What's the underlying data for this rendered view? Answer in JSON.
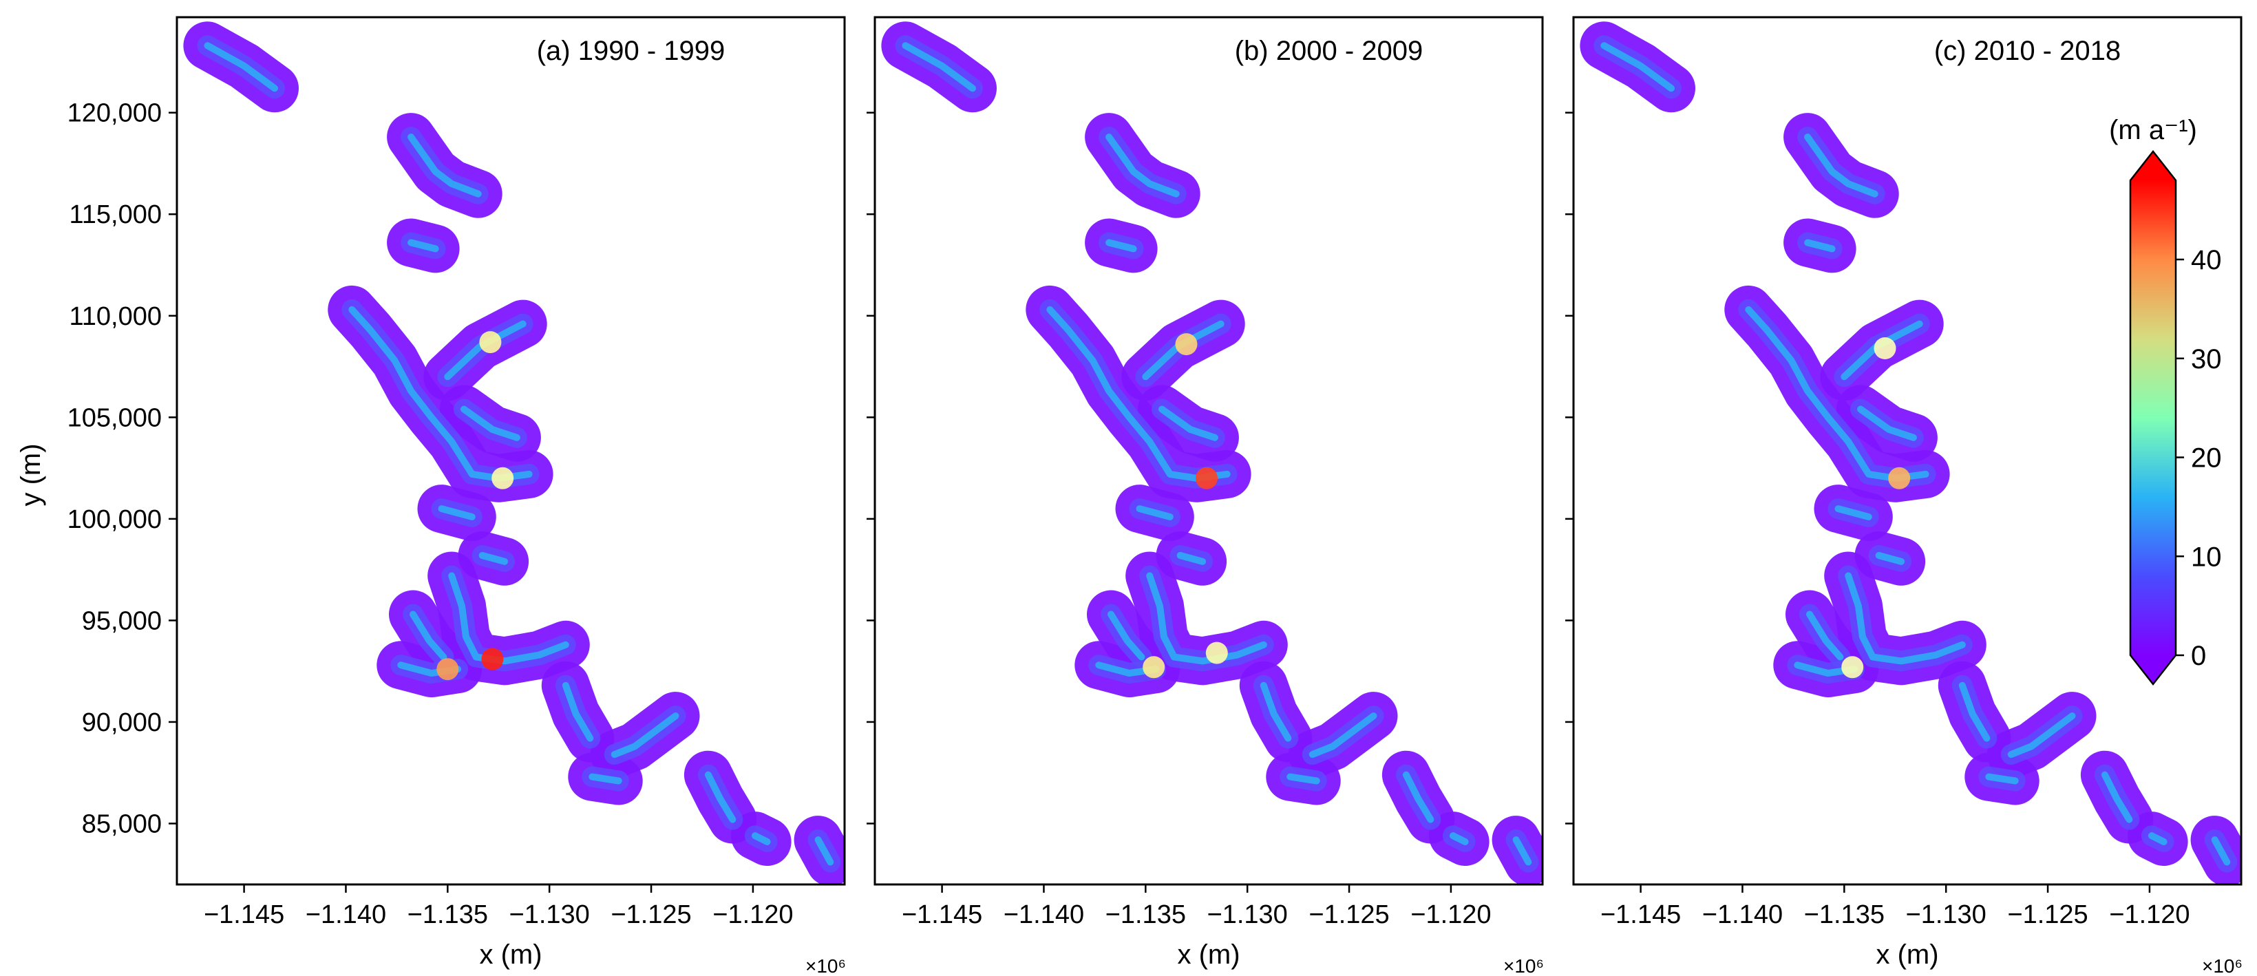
{
  "chart_data": {
    "type": "heatmap",
    "x_tick_labels": [
      "−1.145",
      "−1.140",
      "−1.135",
      "−1.130",
      "−1.125",
      "−1.120"
    ],
    "x_tick_values": [
      -1145000,
      -1140000,
      -1135000,
      -1130000,
      -1125000,
      -1120000
    ],
    "x_exponent_label": "×10⁶",
    "xlabel": "x (m)",
    "xlim": [
      -1148300,
      -1115500
    ],
    "y_tick_labels": [
      "120,000",
      "115,000",
      "110,000",
      "105,000",
      "100,000",
      "95,000",
      "90,000",
      "85,000"
    ],
    "y_tick_values": [
      120000,
      115000,
      110000,
      105000,
      100000,
      95000,
      90000,
      85000
    ],
    "ylabel": "y (m)",
    "ylim": [
      82000,
      124700
    ],
    "panels": [
      {
        "title": "(a) 1990 - 1999"
      },
      {
        "title": "(b) 2000 - 2009"
      },
      {
        "title": "(c) 2010 - 2018"
      }
    ],
    "colorbar": {
      "label": "(m a⁻¹)",
      "tick_labels": [
        "0",
        "10",
        "20",
        "30",
        "40"
      ],
      "tick_values": [
        0,
        10,
        20,
        30,
        40
      ],
      "range": [
        0,
        48
      ],
      "extend": "both",
      "colormap": "rainbow",
      "colors": [
        "#8000ff",
        "#2adddd",
        "#d4dd80",
        "#ff0000"
      ],
      "placement": "right of panel (c)"
    },
    "glacier_flowlines_m": [
      [
        [
          -1146800,
          123300
        ],
        [
          -1145000,
          122300
        ],
        [
          -1143500,
          121200
        ]
      ],
      [
        [
          -1136800,
          118800
        ],
        [
          -1135600,
          117100
        ],
        [
          -1134800,
          116500
        ],
        [
          -1133500,
          116000
        ]
      ],
      [
        [
          -1136800,
          113600
        ],
        [
          -1135600,
          113300
        ]
      ],
      [
        [
          -1139700,
          110300
        ],
        [
          -1138800,
          109300
        ],
        [
          -1137600,
          107800
        ],
        [
          -1136800,
          106300
        ],
        [
          -1135800,
          105000
        ],
        [
          -1134800,
          103800
        ],
        [
          -1133800,
          102200
        ],
        [
          -1132500,
          102000
        ],
        [
          -1131000,
          102200
        ]
      ],
      [
        [
          -1135000,
          107000
        ],
        [
          -1133400,
          108500
        ],
        [
          -1131300,
          109600
        ]
      ],
      [
        [
          -1134200,
          105400
        ],
        [
          -1132800,
          104400
        ],
        [
          -1131600,
          104000
        ]
      ],
      [
        [
          -1135300,
          100500
        ],
        [
          -1133800,
          100100
        ]
      ],
      [
        [
          -1134800,
          97200
        ],
        [
          -1134300,
          95700
        ],
        [
          -1134100,
          94200
        ],
        [
          -1133600,
          93200
        ],
        [
          -1132200,
          93000
        ],
        [
          -1130500,
          93300
        ],
        [
          -1129200,
          93800
        ]
      ],
      [
        [
          -1136700,
          95300
        ],
        [
          -1135900,
          94000
        ],
        [
          -1135200,
          93200
        ]
      ],
      [
        [
          -1137300,
          92800
        ],
        [
          -1135800,
          92400
        ],
        [
          -1134500,
          92600
        ]
      ],
      [
        [
          -1133300,
          98200
        ],
        [
          -1132200,
          97900
        ]
      ],
      [
        [
          -1129200,
          91800
        ],
        [
          -1128700,
          90400
        ],
        [
          -1128000,
          89200
        ]
      ],
      [
        [
          -1126800,
          88400
        ],
        [
          -1125800,
          88800
        ],
        [
          -1124600,
          89700
        ],
        [
          -1123800,
          90300
        ]
      ],
      [
        [
          -1127900,
          87300
        ],
        [
          -1126600,
          87100
        ]
      ],
      [
        [
          -1122200,
          87400
        ],
        [
          -1121600,
          86200
        ],
        [
          -1121000,
          85200
        ]
      ],
      [
        [
          -1119900,
          84400
        ],
        [
          -1119300,
          84100
        ]
      ],
      [
        [
          -1116800,
          84200
        ],
        [
          -1116200,
          83100
        ]
      ]
    ],
    "high_velocity_spots_m_a": [
      {
        "panel": "(a) 1990 - 1999",
        "x": -1132800,
        "y": 93100,
        "value": 46
      },
      {
        "panel": "(a) 1990 - 1999",
        "x": -1135000,
        "y": 92600,
        "value": 38
      },
      {
        "panel": "(a) 1990 - 1999",
        "x": -1132900,
        "y": 108700,
        "value": 28
      },
      {
        "panel": "(a) 1990 - 1999",
        "x": -1132300,
        "y": 102000,
        "value": 26
      },
      {
        "panel": "(b) 2000 - 2009",
        "x": -1132000,
        "y": 102000,
        "value": 44
      },
      {
        "panel": "(b) 2000 - 2009",
        "x": -1133000,
        "y": 108600,
        "value": 33
      },
      {
        "panel": "(b) 2000 - 2009",
        "x": -1134600,
        "y": 92700,
        "value": 30
      },
      {
        "panel": "(b) 2000 - 2009",
        "x": -1131500,
        "y": 93400,
        "value": 26
      },
      {
        "panel": "(c) 2010 - 2018",
        "x": -1132300,
        "y": 102000,
        "value": 36
      },
      {
        "panel": "(c) 2010 - 2018",
        "x": -1133000,
        "y": 108400,
        "value": 24
      },
      {
        "panel": "(c) 2010 - 2018",
        "x": -1134600,
        "y": 92700,
        "value": 24
      }
    ]
  }
}
